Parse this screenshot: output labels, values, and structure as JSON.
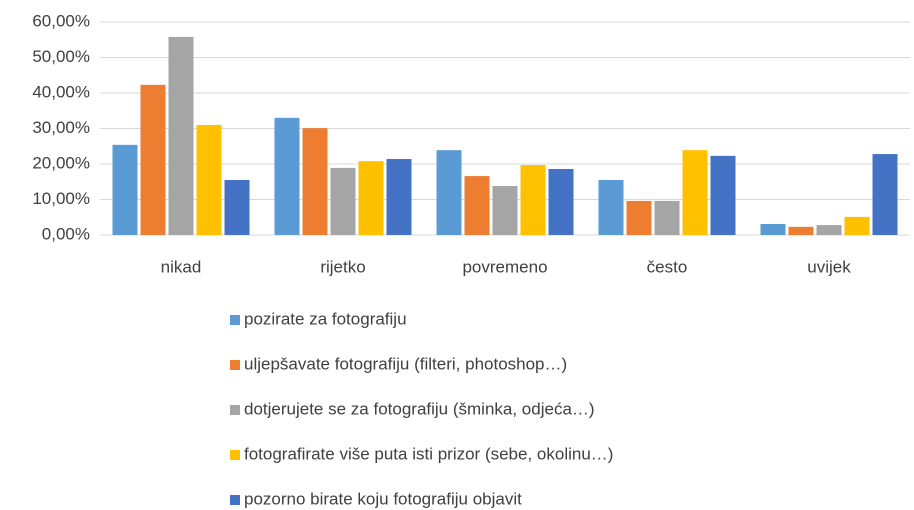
{
  "chart_data": {
    "type": "bar",
    "categories": [
      "nikad",
      "rijetko",
      "povremeno",
      "često",
      "uvijek"
    ],
    "series": [
      {
        "name": "pozirate za fotografiju",
        "color": "#5b9bd5",
        "values": [
          25.4,
          33.0,
          23.9,
          15.5,
          3.1
        ]
      },
      {
        "name": "uljepšavate fotografiju (filteri, photoshop…)",
        "color": "#ed7d31",
        "values": [
          42.3,
          30.1,
          16.6,
          9.6,
          2.3
        ]
      },
      {
        "name": "dotjerujete se za fotografiju (šminka, odjeća…)",
        "color": "#a5a5a5",
        "values": [
          55.8,
          18.9,
          13.8,
          9.6,
          2.8
        ]
      },
      {
        "name": "fotografirate više puta isti prizor (sebe, okolinu…)",
        "color": "#ffc000",
        "values": [
          31.0,
          20.8,
          19.7,
          23.9,
          5.1
        ]
      },
      {
        "name": "pozorno birate koju fotografiju objavit",
        "color": "#4472c4",
        "values": [
          15.5,
          21.4,
          18.6,
          22.3,
          22.8
        ]
      }
    ],
    "ylim": [
      0,
      60
    ],
    "yticks": [
      {
        "value": 0,
        "label": "0,00%"
      },
      {
        "value": 10,
        "label": "10,00%"
      },
      {
        "value": 20,
        "label": "20,00%"
      },
      {
        "value": 30,
        "label": "30,00%"
      },
      {
        "value": 40,
        "label": "40,00%"
      },
      {
        "value": 50,
        "label": "50,00%"
      },
      {
        "value": 60,
        "label": "60,00%"
      }
    ],
    "grid": true,
    "legend": "bottom"
  }
}
